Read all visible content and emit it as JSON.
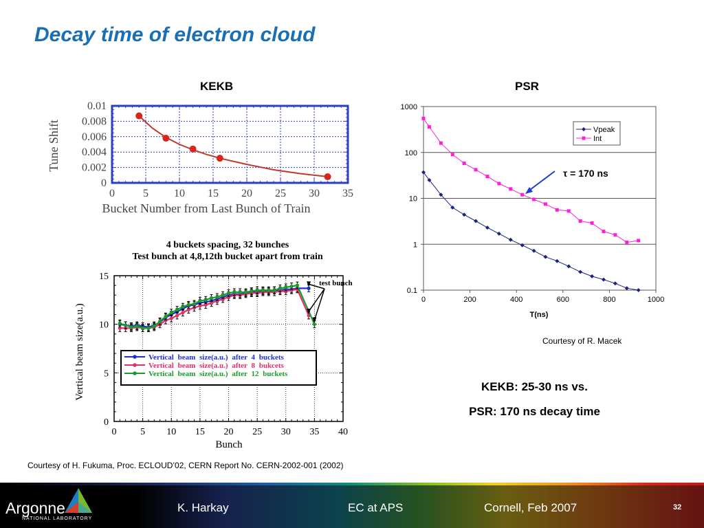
{
  "slide": {
    "title": "Decay time of electron cloud",
    "kekb_label": "KEKB",
    "psr_label": "PSR",
    "courtesy_macek": "Courtesy of R. Macek",
    "courtesy_fukuma": "Courtesy of H. Fukuma, Proc. ECLOUD’02, CERN Report No. CERN-2002-001 (2002)",
    "comparison_line1": "KEKB: 25-30 ns vs.",
    "comparison_line2": "PSR: 170 ns decay time"
  },
  "footer": {
    "logo_text": "Argonne",
    "logo_subtext": "NATIONAL LABORATORY",
    "author": "K. Harkay",
    "topic": "EC at APS",
    "venue": "Cornell, Feb 2007",
    "page": "32"
  },
  "chart_data": [
    {
      "id": "tune-shift",
      "type": "scatter",
      "ylabel": "Tune Shift",
      "xlabel": "Bucket Number from Last Bunch of Train",
      "xlim": [
        0,
        35
      ],
      "ylim": [
        0,
        0.01
      ],
      "x_ticks": [
        "0",
        "5",
        "10",
        "15",
        "20",
        "25",
        "30",
        "35"
      ],
      "y_ticks": [
        "0",
        "0.002",
        "0.004",
        "0.006",
        "0.008",
        "0.01"
      ],
      "grid": true,
      "colors": {
        "points": "#d9261c",
        "fit": "#c0392b",
        "frame": "#2a3fc0"
      },
      "series": [
        {
          "x": [
            4,
            8,
            12,
            16,
            32
          ],
          "y": [
            0.0087,
            0.0058,
            0.0044,
            0.0032,
            0.0008
          ]
        }
      ],
      "fit_curve": {
        "x": [
          4,
          6,
          8,
          10,
          12,
          14,
          16,
          20,
          24,
          28,
          32
        ],
        "y": [
          0.0087,
          0.0071,
          0.0059,
          0.005,
          0.0043,
          0.0037,
          0.0032,
          0.0024,
          0.0017,
          0.0012,
          0.0008
        ]
      }
    },
    {
      "id": "beam-size",
      "type": "line",
      "title": "4 buckets spacing, 32 bunches",
      "subtitle": "Test bunch at 4,8,12th bucket apart from train",
      "xlabel": "Bunch",
      "ylabel": "Vertical beam size(a.u.)",
      "xlim": [
        0,
        40
      ],
      "ylim": [
        0,
        15
      ],
      "x_ticks": [
        "0",
        "5",
        "10",
        "15",
        "20",
        "25",
        "30",
        "35",
        "40"
      ],
      "y_ticks": [
        "0",
        "5",
        "10",
        "15"
      ],
      "grid": true,
      "annotation": "test bunch",
      "legend_position": "bottom-center",
      "series": [
        {
          "name": "Vertical beam size(a.u.) after 4 buckets",
          "color": "#1a2fd0",
          "x": [
            1,
            2,
            3,
            4,
            5,
            6,
            7,
            8,
            9,
            10,
            11,
            12,
            13,
            14,
            15,
            16,
            17,
            18,
            19,
            20,
            21,
            22,
            23,
            24,
            25,
            26,
            27,
            28,
            29,
            30,
            31,
            32,
            34
          ],
          "y": [
            10.0,
            9.9,
            9.8,
            9.9,
            9.8,
            9.7,
            9.9,
            10.2,
            10.7,
            11.0,
            11.3,
            11.6,
            11.9,
            12.0,
            12.2,
            12.3,
            12.4,
            12.6,
            12.8,
            13.0,
            13.1,
            13.1,
            13.2,
            13.3,
            13.3,
            13.4,
            13.4,
            13.5,
            13.5,
            13.6,
            13.6,
            13.7,
            13.7
          ]
        },
        {
          "name": "Vertical beam size(a.u.) after 8 bukcets",
          "color": "#e0306a",
          "x": [
            1,
            2,
            3,
            4,
            5,
            6,
            7,
            8,
            9,
            10,
            11,
            12,
            13,
            14,
            15,
            16,
            17,
            18,
            19,
            20,
            21,
            22,
            23,
            24,
            25,
            26,
            27,
            28,
            29,
            30,
            31,
            32,
            34
          ],
          "y": [
            9.6,
            9.6,
            9.6,
            9.7,
            9.6,
            9.6,
            9.7,
            10.0,
            10.4,
            10.6,
            10.9,
            11.2,
            11.5,
            11.7,
            11.9,
            12.0,
            12.2,
            12.4,
            12.6,
            12.8,
            13.0,
            13.0,
            13.1,
            13.2,
            13.2,
            13.3,
            13.3,
            13.3,
            13.4,
            13.4,
            13.5,
            13.6,
            10.9
          ]
        },
        {
          "name": "Vertical beam size(a.u.) after 12 buckets",
          "color": "#1a9a2a",
          "x": [
            1,
            2,
            3,
            4,
            5,
            6,
            7,
            8,
            9,
            10,
            11,
            12,
            13,
            14,
            15,
            16,
            17,
            18,
            19,
            20,
            21,
            22,
            23,
            24,
            25,
            26,
            27,
            28,
            29,
            30,
            31,
            32,
            35
          ],
          "y": [
            10.1,
            9.9,
            9.7,
            9.8,
            9.6,
            9.6,
            9.8,
            10.3,
            10.8,
            11.2,
            11.5,
            11.8,
            12.0,
            12.1,
            12.4,
            12.5,
            12.7,
            12.8,
            13.0,
            13.2,
            13.3,
            13.3,
            13.3,
            13.4,
            13.5,
            13.5,
            13.5,
            13.5,
            13.7,
            13.8,
            13.9,
            14.0,
            10.0
          ]
        }
      ]
    },
    {
      "id": "psr-decay",
      "type": "line",
      "xlabel": "T(ns)",
      "ylabel": "",
      "xlim": [
        0,
        1000
      ],
      "ylim": [
        0.1,
        1000
      ],
      "log_y": true,
      "x_ticks": [
        "0",
        "200",
        "400",
        "600",
        "800",
        "1000"
      ],
      "y_ticks": [
        "0.1",
        "1",
        "10",
        "100",
        "1000"
      ],
      "grid": true,
      "legend_position": "top-right",
      "annotation": "τ = 170 ns",
      "series": [
        {
          "name": "Vpeak",
          "color": "#1a237e",
          "x": [
            0,
            25,
            75,
            125,
            175,
            225,
            275,
            325,
            375,
            425,
            475,
            525,
            575,
            625,
            675,
            725,
            775,
            825,
            875,
            925
          ],
          "y": [
            37,
            25,
            12,
            6.3,
            4.4,
            3.2,
            2.3,
            1.7,
            1.25,
            0.95,
            0.72,
            0.53,
            0.43,
            0.33,
            0.25,
            0.2,
            0.17,
            0.14,
            0.11,
            0.1
          ]
        },
        {
          "name": "Int",
          "color": "#ff1fd6",
          "x": [
            0,
            25,
            75,
            125,
            175,
            225,
            275,
            325,
            375,
            425,
            475,
            525,
            575,
            625,
            675,
            725,
            775,
            825,
            875,
            925
          ],
          "y": [
            550,
            360,
            160,
            90,
            58,
            42,
            30,
            21,
            16,
            12,
            9.5,
            7.5,
            5.6,
            5.3,
            3.2,
            2.9,
            1.9,
            1.6,
            1.1,
            1.2
          ]
        }
      ]
    }
  ]
}
